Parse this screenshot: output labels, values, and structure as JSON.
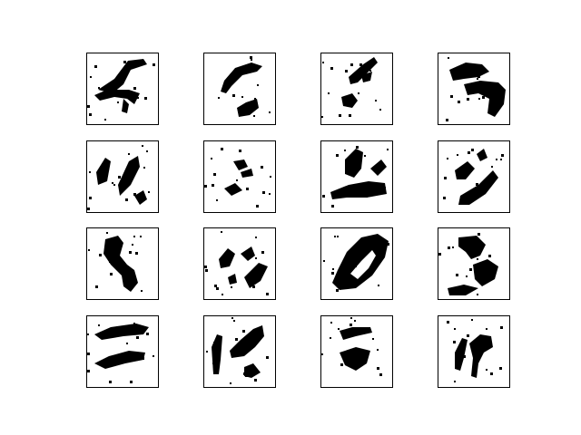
{
  "figure": {
    "rows": 4,
    "cols": 4,
    "background": "#ffffff",
    "ink": "#000000",
    "frame_color": "#000000"
  },
  "samples": [
    {
      "row": 0,
      "col": 0,
      "name": "sample-r1-c1"
    },
    {
      "row": 0,
      "col": 1,
      "name": "sample-r1-c2"
    },
    {
      "row": 0,
      "col": 2,
      "name": "sample-r1-c3"
    },
    {
      "row": 0,
      "col": 3,
      "name": "sample-r1-c4"
    },
    {
      "row": 1,
      "col": 0,
      "name": "sample-r2-c1"
    },
    {
      "row": 1,
      "col": 1,
      "name": "sample-r2-c2"
    },
    {
      "row": 1,
      "col": 2,
      "name": "sample-r2-c3"
    },
    {
      "row": 1,
      "col": 3,
      "name": "sample-r2-c4"
    },
    {
      "row": 2,
      "col": 0,
      "name": "sample-r3-c1"
    },
    {
      "row": 2,
      "col": 1,
      "name": "sample-r3-c2"
    },
    {
      "row": 2,
      "col": 2,
      "name": "sample-r3-c3"
    },
    {
      "row": 2,
      "col": 3,
      "name": "sample-r3-c4"
    },
    {
      "row": 3,
      "col": 0,
      "name": "sample-r4-c1"
    },
    {
      "row": 3,
      "col": 1,
      "name": "sample-r4-c2"
    },
    {
      "row": 3,
      "col": 2,
      "name": "sample-r4-c3"
    },
    {
      "row": 3,
      "col": 3,
      "name": "sample-r4-c4"
    }
  ]
}
